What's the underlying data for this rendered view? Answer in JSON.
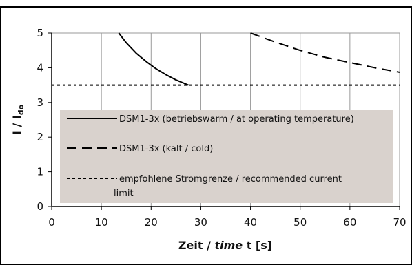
{
  "chart_data": {
    "type": "line",
    "xlabel_plain": "Zeit / ",
    "xlabel_italic": "time",
    "xlabel_suffix": " t [s]",
    "ylabel_main": "I / I",
    "ylabel_sub": "do",
    "xlim": [
      0,
      70
    ],
    "ylim": [
      0,
      5
    ],
    "xticks": [
      0,
      10,
      20,
      30,
      40,
      50,
      60,
      70
    ],
    "yticks": [
      0,
      1,
      2,
      3,
      4,
      5
    ],
    "grid": "vertical",
    "legend_position": "lower-center",
    "series": [
      {
        "name": "DSM1-3x (betriebswarm / at operating temperature)",
        "style": "solid",
        "color": "#000000",
        "points": [
          [
            13.5,
            5.0
          ],
          [
            15,
            4.72
          ],
          [
            17,
            4.42
          ],
          [
            19,
            4.18
          ],
          [
            21,
            3.97
          ],
          [
            23,
            3.8
          ],
          [
            25,
            3.65
          ],
          [
            27.5,
            3.5
          ]
        ]
      },
      {
        "name": "DSM1-3x (kalt / cold)",
        "style": "dashed",
        "color": "#000000",
        "points": [
          [
            40,
            5.0
          ],
          [
            45,
            4.74
          ],
          [
            50,
            4.5
          ],
          [
            55,
            4.3
          ],
          [
            60,
            4.15
          ],
          [
            65,
            4.0
          ],
          [
            70,
            3.87
          ]
        ]
      },
      {
        "name": "empfohlene Stromgrenze / recommended current limit",
        "name_line1": "empfohlene Stromgrenze / recommended current",
        "name_line2": "limit",
        "style": "dotted",
        "color": "#000000",
        "points": [
          [
            0,
            3.5
          ],
          [
            70,
            3.5
          ]
        ]
      }
    ],
    "legend_background": "#d9d2cd"
  }
}
